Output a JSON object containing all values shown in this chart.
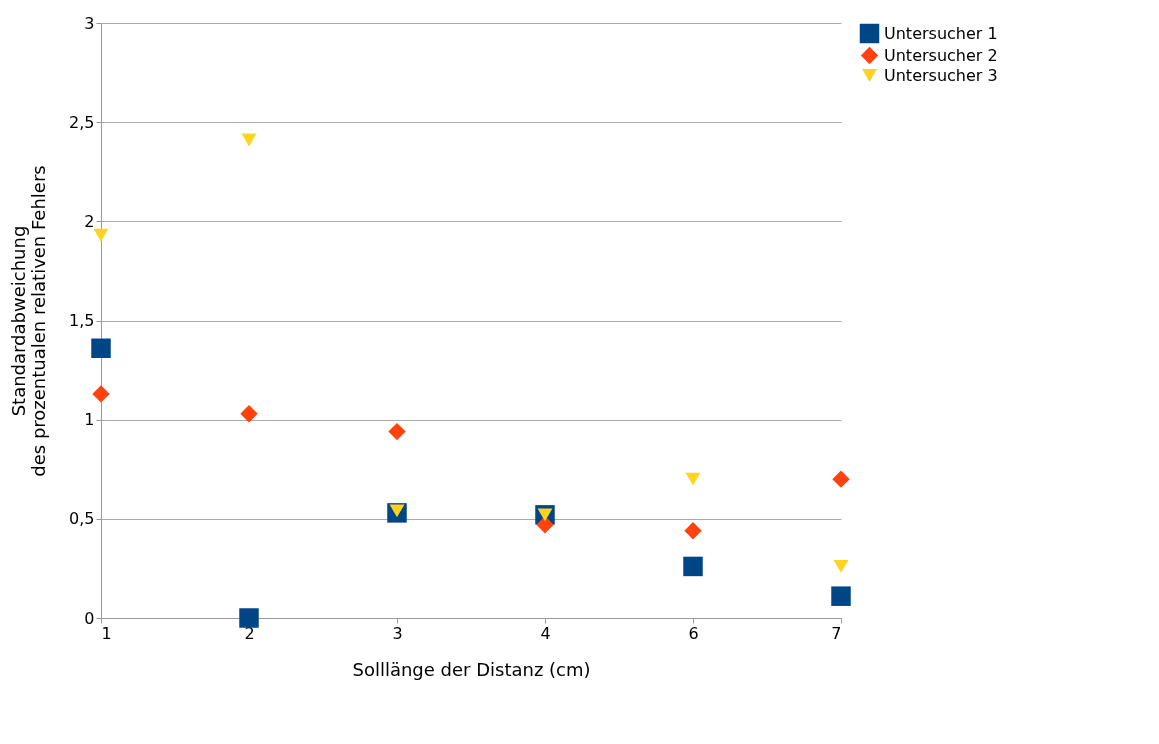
{
  "chart_data": {
    "type": "scatter",
    "xlabel": "Solllänge der Distanz (cm)",
    "ylabel": "Standardabweichung\ndes prozentualen relativen Fehlers",
    "categories": [
      "1",
      "2",
      "3",
      "4",
      "6",
      "7"
    ],
    "series": [
      {
        "name": "Untersucher 1",
        "color": "#004586",
        "marker": "square",
        "values": [
          1.36,
          0,
          0.53,
          0.52,
          0.26,
          0.11
        ]
      },
      {
        "name": "Untersucher 2",
        "color": "#ff420e",
        "marker": "diamond",
        "values": [
          1.13,
          1.03,
          0.94,
          0.47,
          0.44,
          0.7
        ]
      },
      {
        "name": "Untersucher 3",
        "color": "#ffd320",
        "marker": "triangle",
        "values": [
          1.93,
          2.41,
          0.54,
          0.52,
          0.7,
          0.26
        ]
      }
    ],
    "ylim": [
      0,
      3
    ],
    "yticks": [
      0,
      {
        "value": 0.5,
        "label": "0,5"
      },
      1,
      {
        "value": 1.5,
        "label": "1,5"
      },
      2,
      {
        "value": 2.5,
        "label": "2,5"
      },
      3
    ],
    "grid": "y",
    "legend": "right"
  }
}
